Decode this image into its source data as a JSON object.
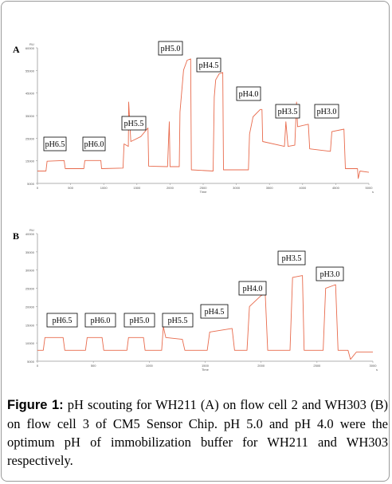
{
  "panels": {
    "a_letter": "A",
    "b_letter": "B"
  },
  "caption": {
    "label": "Figure 1:",
    "text": "pH scouting for WH211 (A) on flow cell 2 and WH303 (B) on flow cell 3 of CM5 Sensor Chip. pH 5.0 and pH 4.0 were the optimum pH of immobilization buffer for WH211 and WH303 respectively."
  },
  "colors": {
    "trace": "#e86a4c",
    "axis": "#999999",
    "label_box_border": "#000000"
  },
  "chart_data": [
    {
      "type": "line",
      "panel": "A",
      "ylabel": "RU",
      "xlabel": "Time",
      "x_unit": "s",
      "xlim": [
        0,
        2000
      ],
      "ylim": [
        5000,
        60000
      ],
      "x_ticks": [
        "0",
        "500",
        "1000",
        "1500",
        "2000",
        "2500",
        "3000",
        "3500",
        "4000",
        "4500",
        "5000"
      ],
      "y_ticks": [
        "5000",
        "15000",
        "25000",
        "35000",
        "45000",
        "55000",
        "60000"
      ],
      "trace": [
        [
          0,
          10000
        ],
        [
          24,
          10000
        ],
        [
          27,
          14000
        ],
        [
          75,
          14300
        ],
        [
          78,
          11000
        ],
        [
          130,
          11000
        ],
        [
          133,
          14300
        ],
        [
          178,
          14300
        ],
        [
          180,
          11000
        ],
        [
          240,
          11200
        ],
        [
          243,
          21000
        ],
        [
          255,
          20000
        ],
        [
          256,
          38000
        ],
        [
          262,
          22000
        ],
        [
          290,
          24000
        ],
        [
          310,
          27500
        ],
        [
          312,
          12000
        ],
        [
          365,
          11800
        ],
        [
          368,
          23000
        ],
        [
          370,
          30000
        ],
        [
          372,
          11800
        ],
        [
          398,
          11800
        ],
        [
          400,
          34000
        ],
        [
          410,
          51000
        ],
        [
          420,
          55000
        ],
        [
          430,
          55500
        ],
        [
          432,
          10500
        ],
        [
          493,
          10000
        ],
        [
          496,
          40000
        ],
        [
          500,
          47000
        ],
        [
          510,
          49500
        ],
        [
          520,
          50000
        ],
        [
          522,
          10500
        ],
        [
          592,
          10500
        ],
        [
          595,
          25000
        ],
        [
          605,
          32000
        ],
        [
          625,
          35000
        ],
        [
          630,
          35000
        ],
        [
          632,
          22000
        ],
        [
          693,
          20000
        ],
        [
          697,
          30000
        ],
        [
          703,
          20000
        ],
        [
          722,
          20500
        ],
        [
          727,
          38000
        ],
        [
          730,
          28000
        ],
        [
          760,
          29000
        ],
        [
          764,
          19000
        ],
        [
          822,
          18000
        ],
        [
          826,
          26000
        ],
        [
          860,
          27000
        ],
        [
          864,
          11000
        ],
        [
          898,
          11000
        ],
        [
          900,
          7000
        ],
        [
          905,
          10000
        ],
        [
          930,
          9500
        ]
      ],
      "labels": [
        "pH6.5",
        "pH6.0",
        "pH5.5",
        "pH5.0",
        "pH4.5",
        "pH4.0",
        "pH3.5",
        "pH3.0"
      ]
    },
    {
      "type": "line",
      "panel": "B",
      "ylabel": "RU",
      "xlabel": "Time",
      "x_unit": "s",
      "xlim": [
        0,
        5000
      ],
      "ylim": [
        5000,
        40000
      ],
      "x_ticks": [
        "0",
        "500",
        "1000",
        "1500",
        "2000",
        "2500",
        "3000"
      ],
      "y_ticks": [
        "5000",
        "10000",
        "15000",
        "20000",
        "25000",
        "30000",
        "35000",
        "40000"
      ],
      "trace": [
        [
          0,
          8000
        ],
        [
          7,
          8000
        ],
        [
          9,
          11500
        ],
        [
          31,
          11500
        ],
        [
          33,
          8000
        ],
        [
          58,
          8000
        ],
        [
          60,
          11500
        ],
        [
          78,
          11500
        ],
        [
          80,
          8000
        ],
        [
          108,
          8000
        ],
        [
          110,
          11500
        ],
        [
          128,
          11500
        ],
        [
          130,
          8000
        ],
        [
          150,
          8000
        ],
        [
          152,
          14500
        ],
        [
          155,
          11500
        ],
        [
          175,
          11000
        ],
        [
          178,
          8000
        ],
        [
          205,
          8000
        ],
        [
          208,
          13000
        ],
        [
          235,
          14000
        ],
        [
          238,
          8000
        ],
        [
          253,
          8000
        ],
        [
          256,
          20000
        ],
        [
          270,
          23000
        ],
        [
          275,
          23500
        ],
        [
          278,
          8000
        ],
        [
          305,
          8000
        ],
        [
          308,
          28000
        ],
        [
          320,
          28500
        ],
        [
          322,
          8000
        ],
        [
          345,
          8000
        ],
        [
          348,
          25000
        ],
        [
          360,
          26000
        ],
        [
          363,
          8000
        ],
        [
          375,
          8000
        ],
        [
          378,
          5500
        ],
        [
          385,
          7500
        ],
        [
          405,
          7500
        ]
      ],
      "labels": [
        "pH6.5",
        "pH6.0",
        "pH5.0",
        "pH5.5",
        "pH4.5",
        "pH4.0",
        "pH3.5",
        "pH3.0"
      ]
    }
  ]
}
